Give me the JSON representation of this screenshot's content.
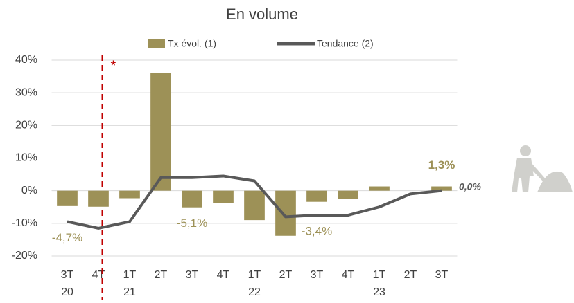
{
  "chart_data": {
    "type": "bar",
    "title": "En volume",
    "categories": [
      "3T 20",
      "4T",
      "1T 21",
      "2T",
      "3T",
      "4T",
      "1T 22",
      "2T",
      "3T",
      "4T",
      "1T 23",
      "2T",
      "3T"
    ],
    "series": [
      {
        "name": "Tx évol. (1)",
        "type": "bar",
        "color": "#9d9157",
        "values": [
          -4.7,
          -4.9,
          -2.3,
          36,
          -5.1,
          -3.7,
          -9,
          -13.8,
          -3.4,
          -2.5,
          1.3,
          null,
          1.3
        ],
        "value_labels": [
          "-4,7%",
          null,
          null,
          null,
          "-5,1%",
          null,
          null,
          null,
          "-3,4%",
          null,
          null,
          null,
          "1,3%"
        ]
      },
      {
        "name": "Tendance (2)",
        "type": "line",
        "color": "#595959",
        "values": [
          -9.5,
          -11.5,
          -9.5,
          4,
          4,
          4.5,
          3,
          -8,
          -7.5,
          -7.5,
          -5,
          -1,
          0
        ],
        "value_labels": [
          null,
          null,
          null,
          null,
          null,
          null,
          null,
          null,
          null,
          null,
          null,
          null,
          "0,0%"
        ]
      }
    ],
    "annotations": [
      "*"
    ],
    "ylim": [
      -20,
      40
    ],
    "yticks": [
      {
        "value": -20,
        "label": "-20%"
      },
      {
        "value": -10,
        "label": "-10%"
      },
      {
        "value": 0,
        "label": "0%"
      },
      {
        "value": 10,
        "label": "10%"
      },
      {
        "value": 20,
        "label": "20%"
      },
      {
        "value": 30,
        "label": "30%"
      },
      {
        "value": 40,
        "label": "40%"
      }
    ],
    "grid": true,
    "legend": "top"
  }
}
